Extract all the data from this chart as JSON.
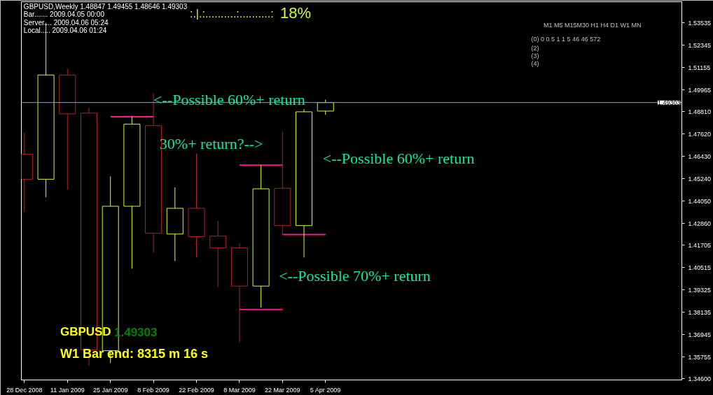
{
  "chart_data": {
    "type": "candlestick",
    "title": "GBPUSD,Weekly  1.48847 1.49455 1.48646 1.49303",
    "x": [
      "2008-12-28",
      "2009-01-04",
      "2009-01-11",
      "2009-01-18",
      "2009-01-25",
      "2009-02-01",
      "2009-02-08",
      "2009-02-15",
      "2009-02-22",
      "2009-03-01",
      "2009-03-08",
      "2009-03-15",
      "2009-03-22",
      "2009-03-29",
      "2009-04-05"
    ],
    "ohlc": [
      [
        1.4656,
        1.4767,
        1.4349,
        1.4522
      ],
      [
        1.4522,
        1.5355,
        1.4426,
        1.5077
      ],
      [
        1.5077,
        1.5111,
        1.4467,
        1.487
      ],
      [
        1.4874,
        1.4903,
        1.3528,
        1.3613
      ],
      [
        1.3609,
        1.4537,
        1.3543,
        1.4378
      ],
      [
        1.4378,
        1.4855,
        1.4045,
        1.4815
      ],
      [
        1.4807,
        1.4981,
        1.4131,
        1.4234
      ],
      [
        1.423,
        1.4478,
        1.4086,
        1.4367
      ],
      [
        1.4367,
        1.4659,
        1.4105,
        1.4216
      ],
      [
        1.4219,
        1.4301,
        1.3949,
        1.4156
      ],
      [
        1.4156,
        1.4179,
        1.3653,
        1.3953
      ],
      [
        1.3953,
        1.4597,
        1.3838,
        1.4471
      ],
      [
        1.4474,
        1.4774,
        1.4227,
        1.4275
      ],
      [
        1.4275,
        1.4896,
        1.4105,
        1.4881
      ],
      [
        1.48847,
        1.49455,
        1.48646,
        1.49303
      ]
    ],
    "colors": [
      "#b22222",
      "#ccff33",
      "#b22222",
      "#b22222",
      "#ccff33",
      "#ccff33",
      "#b22222",
      "#ccff33",
      "#b22222",
      "#b22222",
      "#b22222",
      "#ccff33",
      "#b22222",
      "#ccff33",
      "#ccff33"
    ],
    "series": [
      {
        "type": "line",
        "color": "#ff1493",
        "x": [
          "2009-01-25",
          "2009-02-08"
        ],
        "values": [
          1.4855,
          1.4855
        ]
      },
      {
        "type": "line",
        "color": "#ff1493",
        "x": [
          "2009-03-08",
          "2009-03-22"
        ],
        "values": [
          1.4597,
          1.4597
        ]
      },
      {
        "type": "line",
        "color": "#ff1493",
        "x": [
          "2009-03-08",
          "2009-03-22"
        ],
        "values": [
          1.3828,
          1.3828
        ]
      },
      {
        "type": "line",
        "color": "#ff1493",
        "x": [
          "2009-03-22",
          "2009-04-05"
        ],
        "values": [
          1.4227,
          1.4227
        ]
      }
    ],
    "ref_lines": [
      {
        "axis": "y",
        "value": 1.49303,
        "label": "1.49303",
        "color": "#8da0b6"
      }
    ],
    "xlim": [
      "2008-12-27",
      "2009-07-30"
    ],
    "xticks": [
      {
        "value": "2008-12-28",
        "label": "28 Dec 2008"
      },
      {
        "value": "2009-01-11",
        "label": "11 Jan 2009"
      },
      {
        "value": "2009-01-25",
        "label": "25 Jan 2009"
      },
      {
        "value": "2009-02-08",
        "label": "8 Feb 2009"
      },
      {
        "value": "2009-02-22",
        "label": "22 Feb 2009"
      },
      {
        "value": "2009-03-08",
        "label": "8 Mar 2009"
      },
      {
        "value": "2009-03-22",
        "label": "22 Mar 2009"
      },
      {
        "value": "2009-04-05",
        "label": "5 Apr 2009"
      }
    ],
    "ylim": [
      1.3453,
      1.5467
    ],
    "yticks": [
      {
        "value": 1.346,
        "label": "1.34600"
      },
      1.35755,
      1.36945,
      1.38135,
      1.39325,
      1.40515,
      1.41705,
      {
        "value": 1.4286,
        "label": "1.42860"
      },
      {
        "value": 1.4405,
        "label": "1.44050"
      },
      {
        "value": 1.4524,
        "label": "1.45240"
      },
      {
        "value": 1.4643,
        "label": "1.46430"
      },
      {
        "value": 1.4762,
        "label": "1.47620"
      },
      {
        "value": 1.4881,
        "label": "1.48810"
      },
      1.49965,
      1.51155,
      1.52345,
      1.53535
    ],
    "annotations": [
      "Bar....... 2009.04.05 00:00",
      "Server.... 2009.04.06 05:24",
      "Local..... 2009.04.06 01:24",
      ":.|.:..........:..........:",
      "18%",
      "M1 M5 M15M30  H1  H4  D1  W1  MN",
      "(0)   0    0    5    1    1    5   46   46 572",
      "(2)",
      "(3)",
      "(4)",
      "GBPUSD",
      "1.49303",
      "W1 Bar end: 8315 m 16 s",
      {
        "text": "<--Possible 60%+ return",
        "x": "2009-02-08",
        "y": 1.4945
      },
      {
        "text": "30%+ return?-->",
        "x": "2009-02-10",
        "y": 1.4711
      },
      "<--Possible 60%+ return",
      "<--Possible 70%+ return"
    ]
  }
}
